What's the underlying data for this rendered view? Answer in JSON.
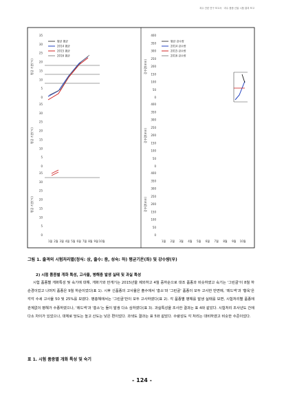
{
  "header": {
    "text": "과수 관련 연구 보고서 · 과수 품종 선발 시험 결과 보고"
  },
  "figure": {
    "left": {
      "ylabels": [
        "평균 기온(℃)",
        "평균 기온(℃)",
        "평균 기온(℃)"
      ],
      "yticks": [
        "35",
        "30",
        "25",
        "20",
        "15",
        "10",
        "5",
        "0"
      ],
      "legend": [
        "평년 평균",
        "2014 평균",
        "2015 평균",
        "2016 평균"
      ],
      "xticks": [
        "1월",
        "2월",
        "3월",
        "4월",
        "5월",
        "6월",
        "7월",
        "8월",
        "9월",
        "10월"
      ]
    },
    "right": {
      "ylabels": [
        "강수량(mm)",
        "강수량(mm)",
        "강수량(mm)"
      ],
      "yticks": [
        "400",
        "350",
        "300",
        "250",
        "200",
        "150",
        "100",
        "50",
        "0"
      ],
      "legend": [
        "평년 강수량",
        "2014 강수량",
        "2015 강수량",
        "2016 강수량"
      ],
      "xticks": [
        "1월",
        "2월",
        "3월",
        "4월",
        "5월",
        "6월",
        "7월",
        "8월",
        "9월",
        "10월"
      ]
    },
    "caption": "그림 1. 출격의 시험처리별(정식: 상, 출수: 중, 성숙: 하) 평균기온(좌) 및 강수량(우)"
  },
  "section": {
    "heading": "2) 시험 품종별 개화 특성, 고사율, 병해충 발생 실태 및 과실 특성",
    "body": "시험 품종별 개화특성 및 숙기에 대해, 개화기와 만개기는 2015년을 제외하고 4월 중하순으로 대조 품종과 비슷하였고 숙기는 '그린골'이 8월 하순경이었고 나머지 품종은 9월 하순이었다(표 1). 시후 신품종의 고사율은 출수에서 '홍소'와 '그린골' 품종이 모두 고사한 반면에, '레드넥'과 '황옥'은 각각 수세 고사율 50 및 25%를 보였다. 병충해에서는 '그린골'만이 모두 고사하였다(표 2). 각 품종별 병해를 발생 실태를 보면, 시험처리별 품종에 관계없이 병해가 수종하였으나, '레드넥'과 '홍소'는 둘이 발생 다소 심하였다(표 3). 과실특성을 조사한 결과는 표 4와 같았다. 시험처리 조사년도 간에 다소 차이가 있었으나, 대체로 당도는 높고 산도는 낮은 편이었다. 과색도 결과는 표 5와 같았다. 수량성도 각 처리는 대비하였고 비슷한 수준이었다."
  },
  "table": {
    "title": "표 1. 시험 품종별 개화 특성 및 숙기"
  },
  "footer": {
    "page": "- 124 -"
  }
}
